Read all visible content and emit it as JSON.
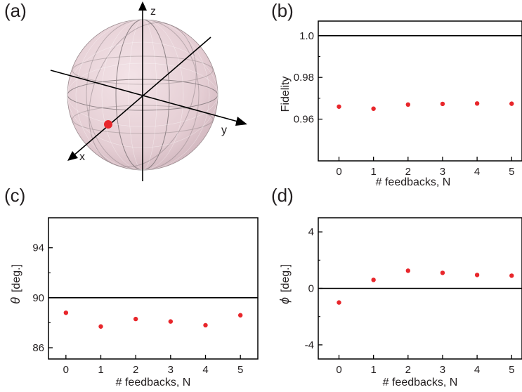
{
  "panel_labels": {
    "a": "(a)",
    "b": "(b)",
    "c": "(c)",
    "d": "(d)"
  },
  "bloch": {
    "axis_labels": {
      "x": "x",
      "y": "y",
      "z": "z"
    },
    "colors": {
      "sphere": "#e9d3d9",
      "point": "#e8262b",
      "axis": "#000000"
    }
  },
  "chart_data": [
    {
      "id": "b",
      "type": "scatter",
      "xlabel": "# feedbacks, N",
      "ylabel": "Fidelity",
      "x": [
        0,
        1,
        2,
        3,
        4,
        5
      ],
      "values": [
        0.966,
        0.965,
        0.967,
        0.9673,
        0.9675,
        0.9674
      ],
      "xlim": [
        -0.6,
        5.3
      ],
      "ylim": [
        0.94,
        1.007
      ],
      "xticks": [
        "0",
        "1",
        "2",
        "3",
        "4",
        "5"
      ],
      "yticks": [
        {
          "v": 1.0,
          "label": "1.0"
        },
        {
          "v": 0.98,
          "label": "0.98"
        },
        {
          "v": 0.96,
          "label": "0.96"
        }
      ],
      "reference_line": 1.0,
      "color": "#e8262b"
    },
    {
      "id": "c",
      "type": "scatter",
      "xlabel": "# feedbacks, N",
      "ylabel": "θ",
      "ylabel_unit": "[deg.]",
      "x": [
        0,
        1,
        2,
        3,
        4,
        5
      ],
      "values": [
        88.8,
        87.7,
        88.3,
        88.1,
        87.8,
        88.6
      ],
      "xlim": [
        -0.5,
        5.5
      ],
      "ylim": [
        85.1,
        96.4
      ],
      "xticks": [
        "0",
        "1",
        "2",
        "3",
        "4",
        "5"
      ],
      "yticks": [
        {
          "v": 94,
          "label": "94"
        },
        {
          "v": 90,
          "label": "90"
        },
        {
          "v": 86,
          "label": "86"
        }
      ],
      "reference_line": 90,
      "color": "#e8262b"
    },
    {
      "id": "d",
      "type": "scatter",
      "xlabel": "# feedbacks, N",
      "ylabel": "ϕ",
      "ylabel_unit": "[deg.]",
      "x": [
        0,
        1,
        2,
        3,
        4,
        5
      ],
      "values": [
        -1.0,
        0.6,
        1.25,
        1.1,
        0.95,
        0.9
      ],
      "xlim": [
        -0.6,
        5.3
      ],
      "ylim": [
        -5.0,
        5.0
      ],
      "xticks": [
        "0",
        "1",
        "2",
        "3",
        "4",
        "5"
      ],
      "yticks": [
        {
          "v": 4,
          "label": "4"
        },
        {
          "v": 0,
          "label": "0"
        },
        {
          "v": -4,
          "label": "-4"
        }
      ],
      "reference_line": 0,
      "color": "#e8262b"
    }
  ]
}
